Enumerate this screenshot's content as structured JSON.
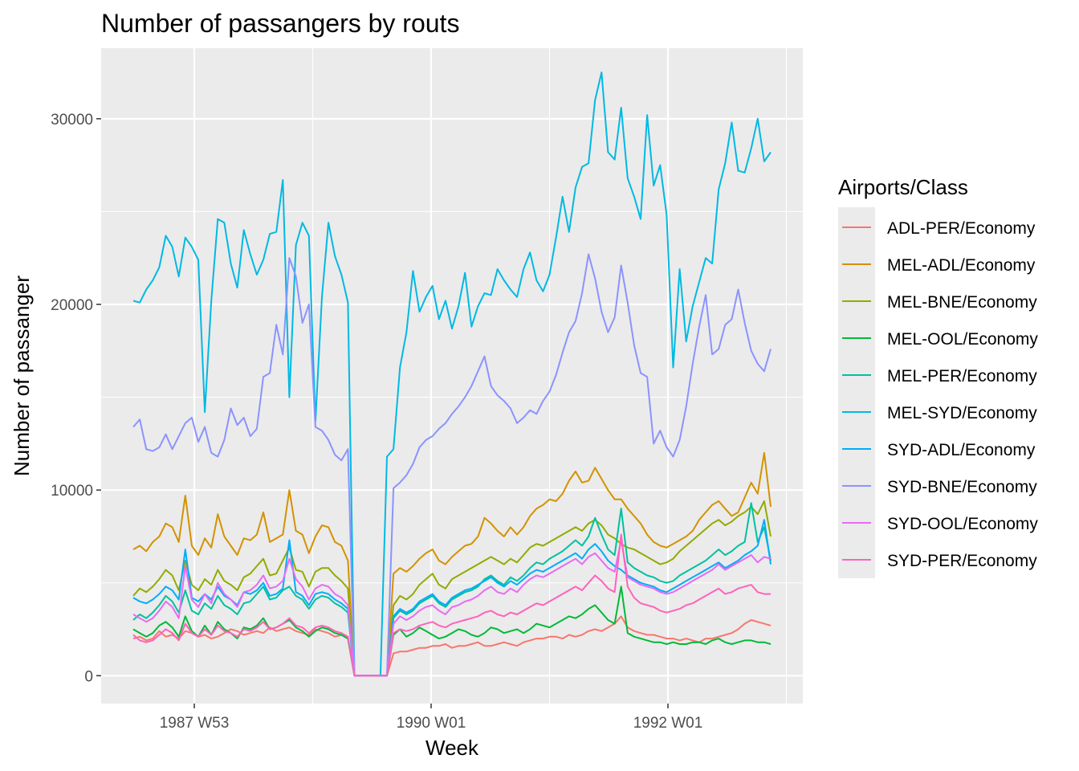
{
  "chart_data": {
    "type": "line",
    "title": "Number of passangers by routs",
    "xlabel": "Week",
    "ylabel": "Number of passanger",
    "x_ticks": [
      "1987 W53",
      "1990 W01",
      "1992 W01"
    ],
    "y_ticks": [
      0,
      10000,
      20000,
      30000
    ],
    "ylim": [
      -1500,
      33800
    ],
    "grid": true,
    "legend_title": "Airports/Class",
    "legend_position": "right",
    "series": [
      {
        "name": "ADL-PER/Economy",
        "color": "#F8766D",
        "values": [
          2000,
          2100,
          1900,
          2000,
          2400,
          2100,
          2200,
          2000,
          2400,
          2300,
          2100,
          2200,
          2000,
          2100,
          2300,
          2500,
          2400,
          2200,
          2300,
          2400,
          2300,
          2600,
          2400,
          2500,
          2600,
          2400,
          2300,
          2200,
          2500,
          2400,
          2300,
          2100,
          2200,
          2000,
          0,
          0,
          0,
          0,
          0,
          0,
          1200,
          1300,
          1300,
          1400,
          1500,
          1500,
          1600,
          1600,
          1700,
          1500,
          1600,
          1600,
          1700,
          1800,
          1600,
          1600,
          1700,
          1800,
          1700,
          1600,
          1800,
          1900,
          2000,
          2000,
          2100,
          2100,
          2000,
          2200,
          2100,
          2200,
          2400,
          2500,
          2400,
          2600,
          2800,
          3200,
          2600,
          2400,
          2300,
          2200,
          2200,
          2100,
          2000,
          2000,
          1900,
          2000,
          1900,
          1800,
          2000,
          2000,
          2100,
          2200,
          2300,
          2500,
          2800,
          3000,
          2900,
          2800,
          2700
        ]
      },
      {
        "name": "MEL-ADL/Economy",
        "color": "#D39200",
        "values": [
          6800,
          7000,
          6700,
          7200,
          7500,
          8200,
          8000,
          7200,
          9700,
          7000,
          6500,
          7400,
          6900,
          8700,
          7500,
          7000,
          6500,
          7400,
          7300,
          7600,
          8800,
          7200,
          7400,
          7600,
          10000,
          7800,
          7600,
          6600,
          7500,
          8100,
          8000,
          7200,
          7000,
          6200,
          0,
          0,
          0,
          0,
          0,
          0,
          5500,
          5800,
          5600,
          5900,
          6300,
          6600,
          6800,
          6200,
          6000,
          6400,
          6700,
          7000,
          7100,
          7500,
          8500,
          8200,
          7800,
          7500,
          8000,
          7600,
          8000,
          8600,
          9000,
          9200,
          9500,
          9400,
          9800,
          10500,
          11000,
          10400,
          10500,
          11200,
          10600,
          10000,
          9500,
          9500,
          9000,
          8600,
          8200,
          7600,
          7200,
          7000,
          6900,
          7100,
          7300,
          7500,
          7800,
          8400,
          8800,
          9200,
          9400,
          9000,
          8600,
          8800,
          9600,
          10400,
          9800,
          12000,
          9100
        ]
      },
      {
        "name": "MEL-BNE/Economy",
        "color": "#93AA00",
        "values": [
          4300,
          4700,
          4500,
          4800,
          5200,
          5700,
          5400,
          4600,
          6200,
          4900,
          4600,
          5200,
          4900,
          5700,
          5100,
          4900,
          4600,
          5300,
          5500,
          5900,
          6300,
          5400,
          5500,
          6200,
          6900,
          5700,
          5600,
          4800,
          5600,
          5800,
          5800,
          5400,
          5100,
          4700,
          0,
          0,
          0,
          0,
          0,
          0,
          3800,
          4300,
          4100,
          4400,
          4900,
          5200,
          5500,
          4900,
          4700,
          5200,
          5400,
          5600,
          5800,
          6000,
          6200,
          6400,
          6200,
          6000,
          6300,
          6100,
          6500,
          6900,
          7100,
          7000,
          7200,
          7400,
          7600,
          7800,
          8000,
          7800,
          8200,
          8400,
          8100,
          7600,
          7400,
          7100,
          6900,
          6800,
          6600,
          6400,
          6200,
          6000,
          6100,
          6300,
          6700,
          7000,
          7300,
          7600,
          7900,
          8200,
          8400,
          8100,
          8300,
          8600,
          8800,
          9100,
          8700,
          9400,
          7500
        ]
      },
      {
        "name": "MEL-OOL/Economy",
        "color": "#00BA38",
        "values": [
          2500,
          2300,
          2100,
          2300,
          2700,
          2900,
          2600,
          2100,
          3200,
          2400,
          2100,
          2700,
          2200,
          2900,
          2500,
          2300,
          2000,
          2600,
          2500,
          2700,
          3100,
          2500,
          2600,
          2800,
          3000,
          2600,
          2400,
          2100,
          2400,
          2600,
          2500,
          2300,
          2200,
          2000,
          0,
          0,
          0,
          0,
          0,
          0,
          2200,
          2500,
          2100,
          2300,
          2600,
          2400,
          2200,
          2000,
          2100,
          2300,
          2500,
          2400,
          2200,
          2100,
          2300,
          2600,
          2500,
          2300,
          2400,
          2500,
          2300,
          2500,
          2800,
          2700,
          2600,
          2800,
          3000,
          3200,
          3100,
          3300,
          3600,
          3800,
          3400,
          3000,
          2800,
          4800,
          2300,
          2100,
          2000,
          1900,
          1800,
          1800,
          1700,
          1800,
          1700,
          1700,
          1800,
          1800,
          1700,
          1900,
          2000,
          1800,
          1700,
          1800,
          1900,
          1900,
          1800,
          1800,
          1700
        ]
      },
      {
        "name": "MEL-PER/Economy",
        "color": "#00C19F",
        "values": [
          3000,
          3300,
          3100,
          3400,
          3800,
          4300,
          4000,
          3400,
          4600,
          3500,
          3300,
          3900,
          3600,
          4300,
          3800,
          3600,
          3300,
          3900,
          4000,
          4400,
          4800,
          4100,
          4200,
          4600,
          4800,
          4300,
          4100,
          3600,
          4100,
          4300,
          4200,
          3900,
          3700,
          3400,
          0,
          0,
          0,
          0,
          0,
          0,
          3100,
          3500,
          3300,
          3500,
          3900,
          4100,
          4300,
          3900,
          3700,
          4100,
          4300,
          4500,
          4600,
          4800,
          5200,
          5400,
          5100,
          4900,
          5300,
          5100,
          5400,
          5800,
          6100,
          6000,
          6300,
          6500,
          6700,
          7000,
          7300,
          7000,
          7500,
          8500,
          7600,
          6800,
          6500,
          9000,
          6100,
          5800,
          5600,
          5400,
          5300,
          5100,
          5000,
          5100,
          5400,
          5600,
          5800,
          6000,
          6200,
          6500,
          6800,
          6500,
          6700,
          7000,
          7200,
          9300,
          7200,
          8000,
          6200
        ]
      },
      {
        "name": "MEL-SYD/Economy",
        "color": "#00B9E3",
        "values": [
          20200,
          20100,
          20800,
          21300,
          22000,
          23700,
          23100,
          21500,
          23600,
          23100,
          22400,
          14200,
          20200,
          24600,
          24400,
          22200,
          20900,
          24000,
          22700,
          21600,
          22400,
          23800,
          23900,
          26700,
          15000,
          23200,
          24400,
          23700,
          13700,
          20400,
          24400,
          22600,
          21600,
          20100,
          0,
          0,
          0,
          0,
          0,
          11800,
          12200,
          16600,
          18500,
          21800,
          19600,
          20400,
          21000,
          19200,
          20200,
          18700,
          19900,
          21700,
          18800,
          19900,
          20600,
          20500,
          21900,
          21300,
          20800,
          20400,
          21900,
          22800,
          21300,
          20700,
          21600,
          23600,
          25800,
          23900,
          26300,
          27400,
          27600,
          31000,
          32500,
          28200,
          27800,
          30600,
          26800,
          25800,
          24600,
          30200,
          26400,
          27500,
          24800,
          16600,
          21900,
          18000,
          19900,
          21200,
          22500,
          22200,
          26200,
          27600,
          29800,
          27200,
          27100,
          28400,
          30000,
          27700,
          28200
        ]
      },
      {
        "name": "SYD-ADL/Economy",
        "color": "#00ADFA",
        "values": [
          4200,
          4000,
          3900,
          4100,
          4400,
          4800,
          4600,
          4100,
          6800,
          4200,
          4000,
          4400,
          4100,
          4800,
          4300,
          4100,
          3800,
          4500,
          4400,
          4600,
          5000,
          4300,
          4400,
          4700,
          7300,
          4500,
          4300,
          3800,
          4400,
          4500,
          4400,
          4100,
          3900,
          3600,
          0,
          0,
          0,
          0,
          0,
          0,
          3200,
          3600,
          3400,
          3600,
          4000,
          4200,
          4400,
          4000,
          3800,
          4200,
          4400,
          4600,
          4700,
          4900,
          5100,
          5300,
          5000,
          4800,
          5100,
          4900,
          5200,
          5500,
          5700,
          5600,
          5800,
          6000,
          6200,
          6400,
          6600,
          6300,
          6800,
          7100,
          6700,
          6200,
          5900,
          5700,
          5400,
          5200,
          5000,
          4900,
          4800,
          4600,
          4500,
          4700,
          4900,
          5100,
          5300,
          5500,
          5700,
          5900,
          6100,
          5800,
          6000,
          6200,
          6500,
          6700,
          7000,
          8400,
          6000
        ]
      },
      {
        "name": "SYD-BNE/Economy",
        "color": "#8B93FF",
        "values": [
          13400,
          13800,
          12200,
          12100,
          12300,
          13000,
          12200,
          12900,
          13600,
          13900,
          12600,
          13400,
          12000,
          11800,
          12700,
          14400,
          13500,
          13900,
          12900,
          13300,
          16100,
          16300,
          18900,
          17300,
          22500,
          21500,
          19000,
          20000,
          13400,
          13200,
          12700,
          11900,
          11600,
          12200,
          0,
          0,
          0,
          0,
          0,
          0,
          10100,
          10400,
          10800,
          11400,
          12300,
          12700,
          12900,
          13300,
          13600,
          14100,
          14500,
          15000,
          15600,
          16400,
          17200,
          15600,
          15100,
          14800,
          14400,
          13600,
          13900,
          14300,
          14100,
          14800,
          15300,
          16200,
          17400,
          18500,
          19100,
          20600,
          22700,
          21400,
          19600,
          18500,
          19300,
          22100,
          20100,
          17800,
          16300,
          16100,
          12500,
          13200,
          12300,
          11800,
          12700,
          14500,
          16800,
          18800,
          20500,
          17300,
          17600,
          18900,
          19200,
          20800,
          19000,
          17500,
          16800,
          16400,
          17600
        ]
      },
      {
        "name": "SYD-OOL/Economy",
        "color": "#E76BF3",
        "values": [
          3300,
          3100,
          2900,
          3100,
          3500,
          4000,
          3700,
          3100,
          5900,
          4100,
          3700,
          4400,
          3900,
          5000,
          4400,
          4100,
          3700,
          4500,
          4600,
          4900,
          5400,
          4700,
          4800,
          5100,
          6300,
          5200,
          4800,
          4100,
          4700,
          4900,
          4800,
          4400,
          4200,
          3800,
          0,
          0,
          0,
          0,
          0,
          0,
          2800,
          3200,
          3000,
          3200,
          3500,
          3700,
          3800,
          3500,
          3300,
          3700,
          3800,
          4000,
          4100,
          4300,
          4600,
          4800,
          4500,
          4400,
          4700,
          4500,
          4900,
          5200,
          5400,
          5300,
          5500,
          5700,
          5900,
          6100,
          6300,
          6000,
          6400,
          6600,
          6200,
          5800,
          5600,
          7300,
          5300,
          5100,
          4900,
          4800,
          4700,
          4500,
          4400,
          4500,
          4700,
          4900,
          5100,
          5300,
          5500,
          5700,
          6000,
          5700,
          5900,
          6100,
          6300,
          6500,
          6100,
          6400,
          6300
        ]
      },
      {
        "name": "SYD-PER/Economy",
        "color": "#FF62BC",
        "values": [
          2200,
          1900,
          1800,
          1900,
          2200,
          2500,
          2300,
          1900,
          2800,
          2300,
          2100,
          2500,
          2200,
          2700,
          2400,
          2300,
          2100,
          2500,
          2400,
          2600,
          2900,
          2500,
          2600,
          2800,
          3100,
          2700,
          2600,
          2300,
          2600,
          2700,
          2600,
          2400,
          2300,
          2100,
          0,
          0,
          0,
          0,
          0,
          0,
          2300,
          2500,
          2400,
          2500,
          2700,
          2800,
          2900,
          2700,
          2600,
          2800,
          2900,
          3000,
          3100,
          3200,
          3400,
          3500,
          3300,
          3200,
          3400,
          3300,
          3500,
          3700,
          3900,
          3800,
          4000,
          4200,
          4400,
          4600,
          4800,
          4600,
          5000,
          5400,
          5100,
          4700,
          4500,
          7600,
          4800,
          4200,
          3900,
          3800,
          3700,
          3500,
          3400,
          3500,
          3600,
          3800,
          3900,
          4100,
          4300,
          4500,
          4700,
          4400,
          4500,
          4700,
          4800,
          4900,
          4500,
          4400,
          4400
        ]
      }
    ]
  }
}
